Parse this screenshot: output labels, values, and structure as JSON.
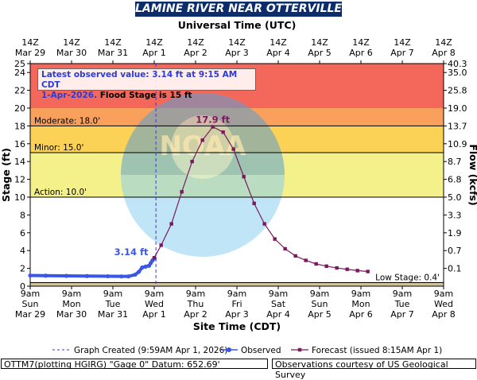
{
  "header": {
    "title": "LAMINE RIVER NEAR OTTERVILLE",
    "top_axis_label": "Universal Time (UTC)"
  },
  "latest": {
    "prefix": "Latest observed value: ",
    "value_text": "3.14 ft at 9:15 AM CDT",
    "date_text": "1-Apr-2026.",
    "flood_text": " Flood Stage is 15 ft"
  },
  "footer": {
    "station": "OTTM7(plotting HGIRG) \"Gage 0\" Datum: 652.69'",
    "courtesy": "Observations courtesy of US Geological Survey"
  },
  "chart_data": {
    "type": "line",
    "title": "LAMINE RIVER NEAR OTTERVILLE",
    "xlabel": "Site Time (CDT)",
    "ylabel": "Stage (ft)",
    "y2label": "Flow (kcfs)",
    "x2label": "Universal Time (UTC)",
    "xlim": [
      "2026-03-29 09:00",
      "2026-04-08 09:00"
    ],
    "ylim": [
      0,
      25
    ],
    "yticks": [
      0,
      2,
      4,
      6,
      8,
      10,
      12,
      14,
      16,
      18,
      20,
      22,
      24,
      25
    ],
    "y2ticks": [
      {
        "stage": 25,
        "label": "40.3"
      },
      {
        "stage": 24,
        "label": "35.0"
      },
      {
        "stage": 22,
        "label": "25.8"
      },
      {
        "stage": 20,
        "label": "19.0"
      },
      {
        "stage": 18,
        "label": "13.7"
      },
      {
        "stage": 16,
        "label": "10.9"
      },
      {
        "stage": 14,
        "label": "8.7"
      },
      {
        "stage": 12,
        "label": "6.8"
      },
      {
        "stage": 10,
        "label": "5.0"
      },
      {
        "stage": 8,
        "label": "3.3"
      },
      {
        "stage": 6,
        "label": "1.9"
      },
      {
        "stage": 4,
        "label": "0.7"
      },
      {
        "stage": 2,
        "label": "0.1"
      }
    ],
    "bottom_ticks": [
      {
        "t": "2026-03-29 09:00",
        "lines": [
          "9am",
          "Sun",
          "Mar 29"
        ]
      },
      {
        "t": "2026-03-30 09:00",
        "lines": [
          "9am",
          "Mon",
          "Mar 30"
        ]
      },
      {
        "t": "2026-03-31 09:00",
        "lines": [
          "9am",
          "Tue",
          "Mar 31"
        ]
      },
      {
        "t": "2026-04-01 09:00",
        "lines": [
          "9am",
          "Wed",
          "Apr 1"
        ]
      },
      {
        "t": "2026-04-02 09:00",
        "lines": [
          "9am",
          "Thu",
          "Apr 2"
        ]
      },
      {
        "t": "2026-04-03 09:00",
        "lines": [
          "9am",
          "Fri",
          "Apr 3"
        ]
      },
      {
        "t": "2026-04-04 09:00",
        "lines": [
          "9am",
          "Sat",
          "Apr 4"
        ]
      },
      {
        "t": "2026-04-05 09:00",
        "lines": [
          "9am",
          "Sun",
          "Apr 5"
        ]
      },
      {
        "t": "2026-04-06 09:00",
        "lines": [
          "9am",
          "Mon",
          "Apr 6"
        ]
      },
      {
        "t": "2026-04-07 09:00",
        "lines": [
          "9am",
          "Tue",
          "Apr 7"
        ]
      },
      {
        "t": "2026-04-08 09:00",
        "lines": [
          "9am",
          "Wed",
          "Apr 8"
        ]
      }
    ],
    "top_ticks": [
      {
        "t": "2026-03-29 09:00",
        "lines": [
          "14Z",
          "Mar 29"
        ]
      },
      {
        "t": "2026-03-30 09:00",
        "lines": [
          "14Z",
          "Mar 30"
        ]
      },
      {
        "t": "2026-03-31 09:00",
        "lines": [
          "14Z",
          "Mar 31"
        ]
      },
      {
        "t": "2026-04-01 09:00",
        "lines": [
          "14Z",
          "Apr 1"
        ]
      },
      {
        "t": "2026-04-02 09:00",
        "lines": [
          "14Z",
          "Apr 2"
        ]
      },
      {
        "t": "2026-04-03 09:00",
        "lines": [
          "14Z",
          "Apr 3"
        ]
      },
      {
        "t": "2026-04-04 09:00",
        "lines": [
          "14Z",
          "Apr 4"
        ]
      },
      {
        "t": "2026-04-05 09:00",
        "lines": [
          "14Z",
          "Apr 5"
        ]
      },
      {
        "t": "2026-04-06 09:00",
        "lines": [
          "14Z",
          "Apr 6"
        ]
      },
      {
        "t": "2026-04-07 09:00",
        "lines": [
          "14Z",
          "Apr 7"
        ]
      },
      {
        "t": "2026-04-08 09:00",
        "lines": [
          "14Z",
          "Apr 8"
        ]
      }
    ],
    "flood_categories": [
      {
        "name": "Major",
        "from": 20,
        "to": 25,
        "color": "#f4685c"
      },
      {
        "name": "Moderate",
        "label": "Moderate: 18.0'",
        "from": 18,
        "to": 20,
        "color": "#f9a05c"
      },
      {
        "name": "Minor",
        "label": "Minor: 15.0'",
        "from": 15,
        "to": 18,
        "color": "#fbd256"
      },
      {
        "name": "Action",
        "label": "Action: 10.0'",
        "from": 10,
        "to": 15,
        "color": "#f4f08a"
      },
      {
        "name": "Normal",
        "from": 0.4,
        "to": 10,
        "color": "#ffffff"
      },
      {
        "name": "Low",
        "label": "Low Stage: 0.4'",
        "from": 0,
        "to": 0.4,
        "color": "#d2c29c"
      }
    ],
    "observed": {
      "name": "Observed",
      "color": "#3a56e8",
      "points": [
        {
          "t": "2026-03-29 09:00",
          "y": 1.2
        },
        {
          "t": "2026-03-29 18:00",
          "y": 1.18
        },
        {
          "t": "2026-03-30 06:00",
          "y": 1.16
        },
        {
          "t": "2026-03-30 18:00",
          "y": 1.14
        },
        {
          "t": "2026-03-31 06:00",
          "y": 1.12
        },
        {
          "t": "2026-03-31 14:00",
          "y": 1.1
        },
        {
          "t": "2026-03-31 18:00",
          "y": 1.1
        },
        {
          "t": "2026-03-31 22:00",
          "y": 1.3
        },
        {
          "t": "2026-04-01 00:00",
          "y": 1.6
        },
        {
          "t": "2026-04-01 02:00",
          "y": 2.1
        },
        {
          "t": "2026-04-01 04:00",
          "y": 2.2
        },
        {
          "t": "2026-04-01 06:00",
          "y": 2.3
        },
        {
          "t": "2026-04-01 07:00",
          "y": 2.6
        },
        {
          "t": "2026-04-01 08:00",
          "y": 2.9
        },
        {
          "t": "2026-04-01 09:15",
          "y": 3.14
        }
      ],
      "label": "3.14 ft"
    },
    "forecast": {
      "name": "Forecast (issued 8:15AM Apr 1)",
      "color": "#7a1a5e",
      "points": [
        {
          "t": "2026-04-01 09:00",
          "y": 3.2
        },
        {
          "t": "2026-04-01 13:00",
          "y": 4.6
        },
        {
          "t": "2026-04-01 19:00",
          "y": 7.0
        },
        {
          "t": "2026-04-02 01:00",
          "y": 10.6
        },
        {
          "t": "2026-04-02 07:00",
          "y": 14.0
        },
        {
          "t": "2026-04-02 13:00",
          "y": 16.4
        },
        {
          "t": "2026-04-02 19:00",
          "y": 17.9
        },
        {
          "t": "2026-04-03 01:00",
          "y": 17.3
        },
        {
          "t": "2026-04-03 07:00",
          "y": 15.4
        },
        {
          "t": "2026-04-03 13:00",
          "y": 12.3
        },
        {
          "t": "2026-04-03 19:00",
          "y": 9.3
        },
        {
          "t": "2026-04-04 01:00",
          "y": 7.0
        },
        {
          "t": "2026-04-04 07:00",
          "y": 5.3
        },
        {
          "t": "2026-04-04 13:00",
          "y": 4.2
        },
        {
          "t": "2026-04-04 19:00",
          "y": 3.4
        },
        {
          "t": "2026-04-05 01:00",
          "y": 2.9
        },
        {
          "t": "2026-04-05 07:00",
          "y": 2.5
        },
        {
          "t": "2026-04-05 13:00",
          "y": 2.25
        },
        {
          "t": "2026-04-05 19:00",
          "y": 2.05
        },
        {
          "t": "2026-04-06 01:00",
          "y": 1.9
        },
        {
          "t": "2026-04-06 07:00",
          "y": 1.75
        },
        {
          "t": "2026-04-06 13:00",
          "y": 1.65
        }
      ],
      "peak_label": "17.9 ft"
    },
    "graph_created": {
      "t": "2026-04-01 09:59",
      "label": "Graph Created (9:59AM Apr 1, 2026)"
    },
    "legend_placement": "bottom",
    "grid": false
  },
  "colors": {
    "title_bg": "#0b2d6b",
    "observed": "#3a56e8",
    "forecast": "#7a1a5e"
  }
}
